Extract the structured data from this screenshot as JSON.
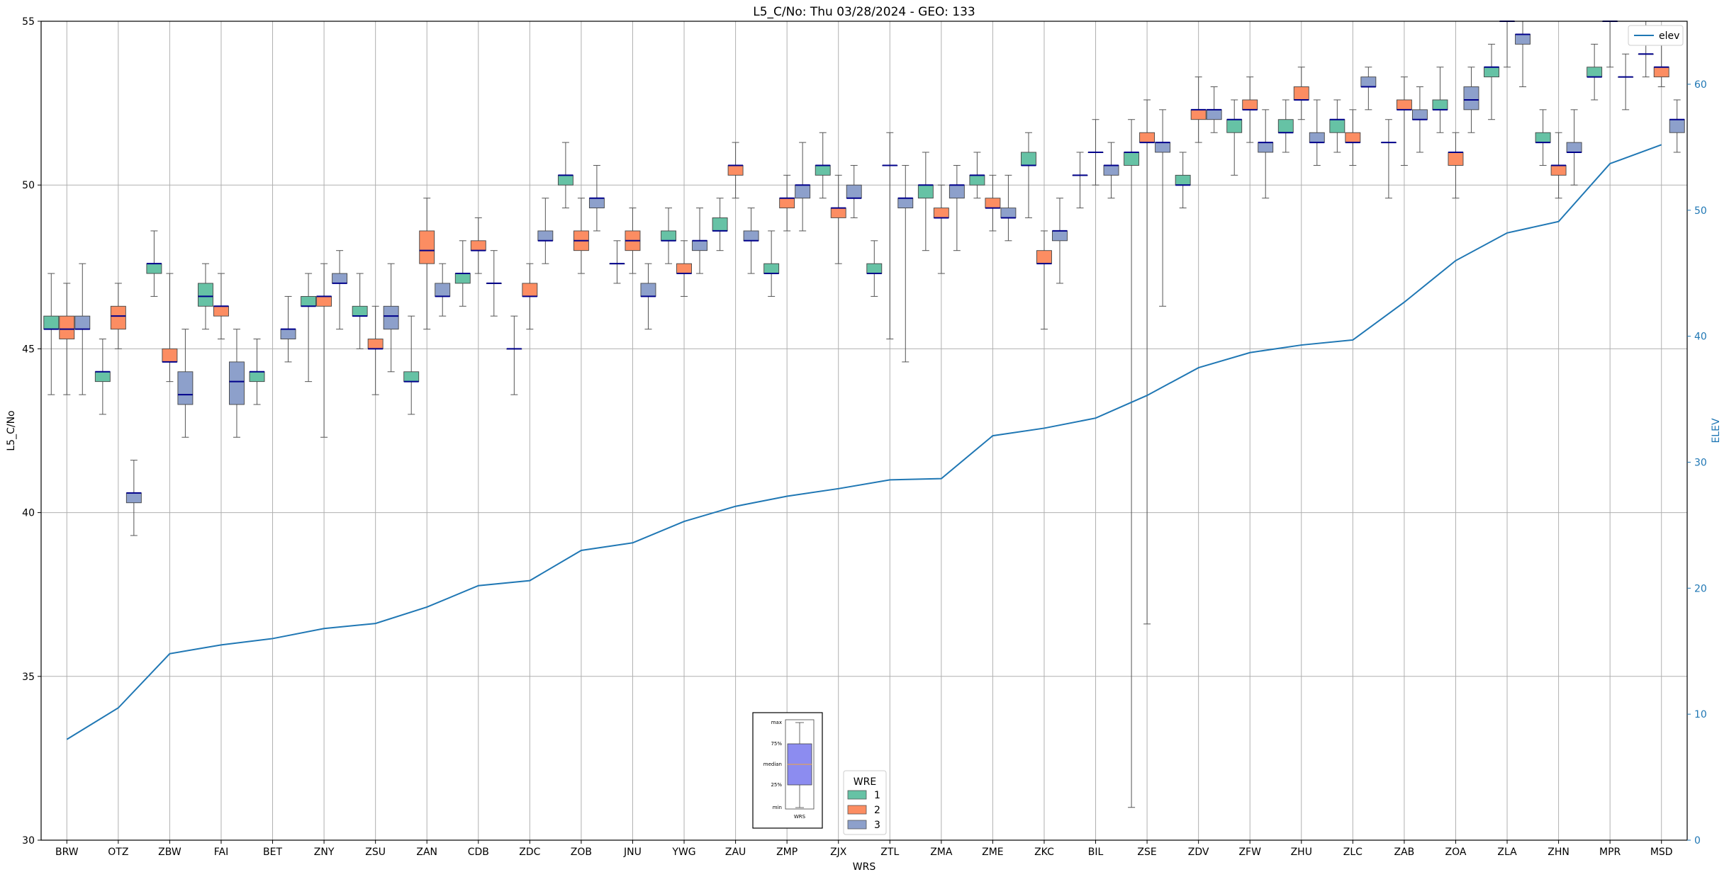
{
  "chart_data": {
    "type": "box",
    "title": "L5_C/No: Thu 03/28/2024 - GEO: 133",
    "xlabel": "WRS",
    "ylabel": "L5_C/No",
    "y2label": "ELEV",
    "ylim": [
      30,
      55
    ],
    "y2lim": [
      0,
      65
    ],
    "yticks": [
      "30",
      "35",
      "40",
      "45",
      "50",
      "55"
    ],
    "y2ticks": [
      "0",
      "10",
      "20",
      "30",
      "40",
      "50",
      "60"
    ],
    "grid": true,
    "categories": [
      "BRW",
      "OTZ",
      "ZBW",
      "FAI",
      "BET",
      "ZNY",
      "ZSU",
      "ZAN",
      "CDB",
      "ZDC",
      "ZOB",
      "JNU",
      "YWG",
      "ZAU",
      "ZMP",
      "ZJX",
      "ZTL",
      "ZMA",
      "ZME",
      "ZKC",
      "BIL",
      "ZSE",
      "ZDV",
      "ZFW",
      "ZHU",
      "ZLC",
      "ZAB",
      "ZOA",
      "ZLA",
      "ZHN",
      "MPR",
      "MSD"
    ],
    "wre_legend": {
      "title": "WRE",
      "items": [
        {
          "label": "1",
          "color": "#66c2a5"
        },
        {
          "label": "2",
          "color": "#fc8d62"
        },
        {
          "label": "3",
          "color": "#8da0cb"
        }
      ]
    },
    "elev_legend": "elev",
    "elev": [
      8,
      10.5,
      14.8,
      15.5,
      16,
      16.8,
      17.2,
      18.5,
      20.2,
      20.6,
      23,
      23.6,
      25.3,
      26.5,
      27.3,
      27.9,
      28.6,
      28.7,
      32.1,
      32.7,
      33.5,
      35.3,
      37.5,
      38.7,
      39.3,
      39.7,
      42.7,
      46,
      48.2,
      49.1,
      53.7,
      55.2
    ],
    "boxes": [
      {
        "wrs": "BRW",
        "wre": 1,
        "whislo": 43.6,
        "q1": 45.6,
        "med": 45.6,
        "q3": 46,
        "whishi": 47.3
      },
      {
        "wrs": "BRW",
        "wre": 2,
        "whislo": 43.6,
        "q1": 45.3,
        "med": 45.6,
        "q3": 46,
        "whishi": 47
      },
      {
        "wrs": "BRW",
        "wre": 3,
        "whislo": 43.6,
        "q1": 45.6,
        "med": 45.6,
        "q3": 46,
        "whishi": 47.6
      },
      {
        "wrs": "OTZ",
        "wre": 1,
        "whislo": 43,
        "q1": 44,
        "med": 44.3,
        "q3": 44.3,
        "whishi": 45.3
      },
      {
        "wrs": "OTZ",
        "wre": 2,
        "whislo": 45,
        "q1": 45.6,
        "med": 46,
        "q3": 46.3,
        "whishi": 47
      },
      {
        "wrs": "OTZ",
        "wre": 3,
        "whislo": 39.3,
        "q1": 40.3,
        "med": 40.6,
        "q3": 40.6,
        "whishi": 41.6
      },
      {
        "wrs": "ZBW",
        "wre": 1,
        "whislo": 46.6,
        "q1": 47.3,
        "med": 47.6,
        "q3": 47.6,
        "whishi": 48.6
      },
      {
        "wrs": "ZBW",
        "wre": 2,
        "whislo": 44,
        "q1": 44.6,
        "med": 44.6,
        "q3": 45,
        "whishi": 47.3
      },
      {
        "wrs": "ZBW",
        "wre": 3,
        "whislo": 42.3,
        "q1": 43.3,
        "med": 43.6,
        "q3": 44.3,
        "whishi": 45.6
      },
      {
        "wrs": "FAI",
        "wre": 1,
        "whislo": 45.6,
        "q1": 46.3,
        "med": 46.6,
        "q3": 47,
        "whishi": 47.6
      },
      {
        "wrs": "FAI",
        "wre": 2,
        "whislo": 45.3,
        "q1": 46,
        "med": 46.3,
        "q3": 46.3,
        "whishi": 47.3
      },
      {
        "wrs": "FAI",
        "wre": 3,
        "whislo": 42.3,
        "q1": 43.3,
        "med": 44,
        "q3": 44.6,
        "whishi": 45.6
      },
      {
        "wrs": "BET",
        "wre": 1,
        "whislo": 43.3,
        "q1": 44,
        "med": 44.3,
        "q3": 44.3,
        "whishi": 45.3
      },
      {
        "wrs": "BET",
        "wre": 3,
        "whislo": 44.6,
        "q1": 45.3,
        "med": 45.6,
        "q3": 45.6,
        "whishi": 46.6
      },
      {
        "wrs": "ZNY",
        "wre": 1,
        "whislo": 44,
        "q1": 46.3,
        "med": 46.3,
        "q3": 46.6,
        "whishi": 47.3
      },
      {
        "wrs": "ZNY",
        "wre": 2,
        "whislo": 42.3,
        "q1": 46.3,
        "med": 46.6,
        "q3": 46.6,
        "whishi": 47.6
      },
      {
        "wrs": "ZNY",
        "wre": 3,
        "whislo": 45.6,
        "q1": 47,
        "med": 47,
        "q3": 47.3,
        "whishi": 48
      },
      {
        "wrs": "ZSU",
        "wre": 1,
        "whislo": 45,
        "q1": 46,
        "med": 46,
        "q3": 46.3,
        "whishi": 47.3
      },
      {
        "wrs": "ZSU",
        "wre": 2,
        "whislo": 43.6,
        "q1": 45,
        "med": 45,
        "q3": 45.3,
        "whishi": 46.3
      },
      {
        "wrs": "ZSU",
        "wre": 3,
        "whislo": 44.3,
        "q1": 45.6,
        "med": 46,
        "q3": 46.3,
        "whishi": 47.6
      },
      {
        "wrs": "ZAN",
        "wre": 1,
        "whislo": 43,
        "q1": 44,
        "med": 44,
        "q3": 44.3,
        "whishi": 46
      },
      {
        "wrs": "ZAN",
        "wre": 2,
        "whislo": 45.6,
        "q1": 47.6,
        "med": 48,
        "q3": 48.6,
        "whishi": 49.6
      },
      {
        "wrs": "ZAN",
        "wre": 3,
        "whislo": 46,
        "q1": 46.6,
        "med": 46.6,
        "q3": 47,
        "whishi": 47.6
      },
      {
        "wrs": "CDB",
        "wre": 1,
        "whislo": 46.3,
        "q1": 47,
        "med": 47.3,
        "q3": 47.3,
        "whishi": 48.3
      },
      {
        "wrs": "CDB",
        "wre": 2,
        "whislo": 47.3,
        "q1": 48,
        "med": 48,
        "q3": 48.3,
        "whishi": 49
      },
      {
        "wrs": "CDB",
        "wre": 3,
        "whislo": 46,
        "q1": 47,
        "med": 47,
        "q3": 47,
        "whishi": 48
      },
      {
        "wrs": "ZDC",
        "wre": 1,
        "whislo": 43.6,
        "q1": 45,
        "med": 45,
        "q3": 45,
        "whishi": 46
      },
      {
        "wrs": "ZDC",
        "wre": 2,
        "whislo": 45.6,
        "q1": 46.6,
        "med": 46.6,
        "q3": 47,
        "whishi": 47.6
      },
      {
        "wrs": "ZDC",
        "wre": 3,
        "whislo": 47.6,
        "q1": 48.3,
        "med": 48.3,
        "q3": 48.6,
        "whishi": 49.6
      },
      {
        "wrs": "ZOB",
        "wre": 1,
        "whislo": 49.3,
        "q1": 50,
        "med": 50.3,
        "q3": 50.3,
        "whishi": 51.3
      },
      {
        "wrs": "ZOB",
        "wre": 2,
        "whislo": 47.3,
        "q1": 48,
        "med": 48.3,
        "q3": 48.6,
        "whishi": 49.6
      },
      {
        "wrs": "ZOB",
        "wre": 3,
        "whislo": 48.6,
        "q1": 49.3,
        "med": 49.6,
        "q3": 49.6,
        "whishi": 50.6
      },
      {
        "wrs": "JNU",
        "wre": 1,
        "whislo": 47,
        "q1": 47.6,
        "med": 47.6,
        "q3": 47.6,
        "whishi": 48.3
      },
      {
        "wrs": "JNU",
        "wre": 2,
        "whislo": 47.3,
        "q1": 48,
        "med": 48.3,
        "q3": 48.6,
        "whishi": 49.3
      },
      {
        "wrs": "JNU",
        "wre": 3,
        "whislo": 45.6,
        "q1": 46.6,
        "med": 46.6,
        "q3": 47,
        "whishi": 47.6
      },
      {
        "wrs": "YWG",
        "wre": 1,
        "whislo": 47.6,
        "q1": 48.3,
        "med": 48.3,
        "q3": 48.6,
        "whishi": 49.3
      },
      {
        "wrs": "YWG",
        "wre": 2,
        "whislo": 46.6,
        "q1": 47.3,
        "med": 47.3,
        "q3": 47.6,
        "whishi": 48.3
      },
      {
        "wrs": "YWG",
        "wre": 3,
        "whislo": 47.3,
        "q1": 48,
        "med": 48.3,
        "q3": 48.3,
        "whishi": 49.3
      },
      {
        "wrs": "ZAU",
        "wre": 1,
        "whislo": 48,
        "q1": 48.6,
        "med": 48.6,
        "q3": 49,
        "whishi": 49.6
      },
      {
        "wrs": "ZAU",
        "wre": 2,
        "whislo": 49.6,
        "q1": 50.3,
        "med": 50.6,
        "q3": 50.6,
        "whishi": 51.3
      },
      {
        "wrs": "ZAU",
        "wre": 3,
        "whislo": 47.3,
        "q1": 48.3,
        "med": 48.3,
        "q3": 48.6,
        "whishi": 49.3
      },
      {
        "wrs": "ZMP",
        "wre": 1,
        "whislo": 46.6,
        "q1": 47.3,
        "med": 47.3,
        "q3": 47.6,
        "whishi": 48.6
      },
      {
        "wrs": "ZMP",
        "wre": 2,
        "whislo": 48.6,
        "q1": 49.3,
        "med": 49.6,
        "q3": 49.6,
        "whishi": 50.3
      },
      {
        "wrs": "ZMP",
        "wre": 3,
        "whislo": 48.6,
        "q1": 49.6,
        "med": 50,
        "q3": 50,
        "whishi": 51.3
      },
      {
        "wrs": "ZJX",
        "wre": 1,
        "whislo": 49.6,
        "q1": 50.3,
        "med": 50.6,
        "q3": 50.6,
        "whishi": 51.6
      },
      {
        "wrs": "ZJX",
        "wre": 2,
        "whislo": 47.6,
        "q1": 49,
        "med": 49.3,
        "q3": 49.3,
        "whishi": 50.3
      },
      {
        "wrs": "ZJX",
        "wre": 3,
        "whislo": 49,
        "q1": 49.6,
        "med": 49.6,
        "q3": 50,
        "whishi": 50.6
      },
      {
        "wrs": "ZTL",
        "wre": 1,
        "whislo": 46.6,
        "q1": 47.3,
        "med": 47.3,
        "q3": 47.6,
        "whishi": 48.3
      },
      {
        "wrs": "ZTL",
        "wre": 2,
        "whislo": 45.3,
        "q1": 50.6,
        "med": 50.6,
        "q3": 50.6,
        "whishi": 51.6
      },
      {
        "wrs": "ZTL",
        "wre": 3,
        "whislo": 44.6,
        "q1": 49.3,
        "med": 49.6,
        "q3": 49.6,
        "whishi": 50.6
      },
      {
        "wrs": "ZMA",
        "wre": 1,
        "whislo": 48,
        "q1": 49.6,
        "med": 50,
        "q3": 50,
        "whishi": 51
      },
      {
        "wrs": "ZMA",
        "wre": 2,
        "whislo": 47.3,
        "q1": 49,
        "med": 49,
        "q3": 49.3,
        "whishi": 50
      },
      {
        "wrs": "ZMA",
        "wre": 3,
        "whislo": 48,
        "q1": 49.6,
        "med": 50,
        "q3": 50,
        "whishi": 50.6
      },
      {
        "wrs": "ZME",
        "wre": 1,
        "whislo": 49.6,
        "q1": 50,
        "med": 50.3,
        "q3": 50.3,
        "whishi": 51
      },
      {
        "wrs": "ZME",
        "wre": 2,
        "whislo": 48.6,
        "q1": 49.3,
        "med": 49.3,
        "q3": 49.6,
        "whishi": 50.3
      },
      {
        "wrs": "ZME",
        "wre": 3,
        "whislo": 48.3,
        "q1": 49,
        "med": 49,
        "q3": 49.3,
        "whishi": 50.3
      },
      {
        "wrs": "ZKC",
        "wre": 1,
        "whislo": 49,
        "q1": 50.6,
        "med": 50.6,
        "q3": 51,
        "whishi": 51.6
      },
      {
        "wrs": "ZKC",
        "wre": 2,
        "whislo": 45.6,
        "q1": 47.6,
        "med": 47.6,
        "q3": 48,
        "whishi": 48.6
      },
      {
        "wrs": "ZKC",
        "wre": 3,
        "whislo": 47,
        "q1": 48.3,
        "med": 48.6,
        "q3": 48.6,
        "whishi": 49.6
      },
      {
        "wrs": "BIL",
        "wre": 1,
        "whislo": 49.3,
        "q1": 50.3,
        "med": 50.3,
        "q3": 50.3,
        "whishi": 51
      },
      {
        "wrs": "BIL",
        "wre": 2,
        "whislo": 50,
        "q1": 51,
        "med": 51,
        "q3": 51,
        "whishi": 52
      },
      {
        "wrs": "BIL",
        "wre": 3,
        "whislo": 49.6,
        "q1": 50.3,
        "med": 50.6,
        "q3": 50.6,
        "whishi": 51.3
      },
      {
        "wrs": "ZSE",
        "wre": 1,
        "whislo": 31,
        "q1": 50.6,
        "med": 51,
        "q3": 51,
        "whishi": 52
      },
      {
        "wrs": "ZSE",
        "wre": 2,
        "whislo": 36.6,
        "q1": 51.3,
        "med": 51.3,
        "q3": 51.6,
        "whishi": 52.6
      },
      {
        "wrs": "ZSE",
        "wre": 3,
        "whislo": 46.3,
        "q1": 51,
        "med": 51.3,
        "q3": 51.3,
        "whishi": 52.3
      },
      {
        "wrs": "ZDV",
        "wre": 1,
        "whislo": 49.3,
        "q1": 50,
        "med": 50,
        "q3": 50.3,
        "whishi": 51
      },
      {
        "wrs": "ZDV",
        "wre": 2,
        "whislo": 51.3,
        "q1": 52,
        "med": 52.3,
        "q3": 52.3,
        "whishi": 53.3
      },
      {
        "wrs": "ZDV",
        "wre": 3,
        "whislo": 51.6,
        "q1": 52,
        "med": 52.3,
        "q3": 52.3,
        "whishi": 53
      },
      {
        "wrs": "ZFW",
        "wre": 1,
        "whislo": 50.3,
        "q1": 51.6,
        "med": 52,
        "q3": 52,
        "whishi": 52.6
      },
      {
        "wrs": "ZFW",
        "wre": 2,
        "whislo": 51.3,
        "q1": 52.3,
        "med": 52.3,
        "q3": 52.6,
        "whishi": 53.3
      },
      {
        "wrs": "ZFW",
        "wre": 3,
        "whislo": 49.6,
        "q1": 51,
        "med": 51.3,
        "q3": 51.3,
        "whishi": 52.3
      },
      {
        "wrs": "ZHU",
        "wre": 1,
        "whislo": 51,
        "q1": 51.6,
        "med": 51.6,
        "q3": 52,
        "whishi": 52.6
      },
      {
        "wrs": "ZHU",
        "wre": 2,
        "whislo": 52,
        "q1": 52.6,
        "med": 52.6,
        "q3": 53,
        "whishi": 53.6
      },
      {
        "wrs": "ZHU",
        "wre": 3,
        "whislo": 50.6,
        "q1": 51.3,
        "med": 51.3,
        "q3": 51.6,
        "whishi": 52.6
      },
      {
        "wrs": "ZLC",
        "wre": 1,
        "whislo": 51,
        "q1": 51.6,
        "med": 52,
        "q3": 52,
        "whishi": 52.6
      },
      {
        "wrs": "ZLC",
        "wre": 2,
        "whislo": 50.6,
        "q1": 51.3,
        "med": 51.3,
        "q3": 51.6,
        "whishi": 52.3
      },
      {
        "wrs": "ZLC",
        "wre": 3,
        "whislo": 52.3,
        "q1": 53,
        "med": 53,
        "q3": 53.3,
        "whishi": 53.6
      },
      {
        "wrs": "ZAB",
        "wre": 1,
        "whislo": 49.6,
        "q1": 51.3,
        "med": 51.3,
        "q3": 51.3,
        "whishi": 52
      },
      {
        "wrs": "ZAB",
        "wre": 2,
        "whislo": 50.6,
        "q1": 52.3,
        "med": 52.3,
        "q3": 52.6,
        "whishi": 53.3
      },
      {
        "wrs": "ZAB",
        "wre": 3,
        "whislo": 51,
        "q1": 52,
        "med": 52,
        "q3": 52.3,
        "whishi": 53
      },
      {
        "wrs": "ZOA",
        "wre": 1,
        "whislo": 51.6,
        "q1": 52.3,
        "med": 52.3,
        "q3": 52.6,
        "whishi": 53.6
      },
      {
        "wrs": "ZOA",
        "wre": 2,
        "whislo": 49.6,
        "q1": 50.6,
        "med": 51,
        "q3": 51,
        "whishi": 51.6
      },
      {
        "wrs": "ZOA",
        "wre": 3,
        "whislo": 51.6,
        "q1": 52.3,
        "med": 52.6,
        "q3": 53,
        "whishi": 53.6
      },
      {
        "wrs": "ZLA",
        "wre": 1,
        "whislo": 52,
        "q1": 53.3,
        "med": 53.6,
        "q3": 53.6,
        "whishi": 54.3
      },
      {
        "wrs": "ZLA",
        "wre": 2,
        "whislo": 53.6,
        "q1": 55,
        "med": 55,
        "q3": 55,
        "whishi": 55
      },
      {
        "wrs": "ZLA",
        "wre": 3,
        "whislo": 53,
        "q1": 54.3,
        "med": 54.6,
        "q3": 54.6,
        "whishi": 55
      },
      {
        "wrs": "ZHN",
        "wre": 1,
        "whislo": 50.6,
        "q1": 51.3,
        "med": 51.3,
        "q3": 51.6,
        "whishi": 52.3
      },
      {
        "wrs": "ZHN",
        "wre": 2,
        "whislo": 49.6,
        "q1": 50.3,
        "med": 50.6,
        "q3": 50.6,
        "whishi": 51.6
      },
      {
        "wrs": "ZHN",
        "wre": 3,
        "whislo": 50,
        "q1": 51,
        "med": 51,
        "q3": 51.3,
        "whishi": 52.3
      },
      {
        "wrs": "MPR",
        "wre": 1,
        "whislo": 52.6,
        "q1": 53.3,
        "med": 53.3,
        "q3": 53.6,
        "whishi": 54.3
      },
      {
        "wrs": "MPR",
        "wre": 2,
        "whislo": 53.6,
        "q1": 55,
        "med": 55,
        "q3": 55,
        "whishi": 55
      },
      {
        "wrs": "MPR",
        "wre": 3,
        "whislo": 52.3,
        "q1": 53.3,
        "med": 53.3,
        "q3": 53.3,
        "whishi": 54
      },
      {
        "wrs": "MSD",
        "wre": 1,
        "whislo": 53.3,
        "q1": 54,
        "med": 54,
        "q3": 54,
        "whishi": 55
      },
      {
        "wrs": "MSD",
        "wre": 2,
        "whislo": 53,
        "q1": 53.3,
        "med": 53.6,
        "q3": 53.6,
        "whishi": 54.6
      },
      {
        "wrs": "MSD",
        "wre": 3,
        "whislo": 51,
        "q1": 51.6,
        "med": 52,
        "q3": 52,
        "whishi": 52.6
      }
    ],
    "box_key": {
      "labels": [
        "max",
        "75%",
        "median",
        "25%",
        "min"
      ],
      "xlabel": "WRS",
      "box_color": "#8c8cf0",
      "median_color": "#e0a060"
    }
  }
}
